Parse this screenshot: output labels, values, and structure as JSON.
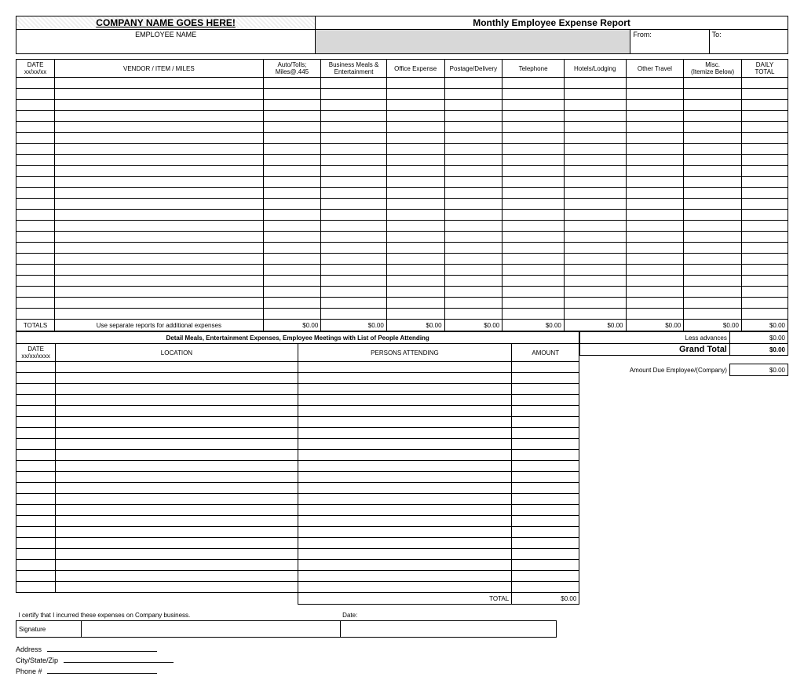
{
  "header": {
    "company_name": "COMPANY NAME GOES HERE!",
    "report_title": "Monthly Employee Expense Report",
    "employee_name_label": "EMPLOYEE NAME",
    "from_label": "From:",
    "to_label": "To:"
  },
  "maincols": {
    "date": "DATE",
    "date_fmt": "xx/xx/xx",
    "vendor": "VENDOR / ITEM / MILES",
    "auto": "Auto/Tolls;",
    "auto_sub": "Miles@.445",
    "meals": "Business Meals & Entertainment",
    "office": "Office Expense",
    "postage": "Postage/Delivery",
    "telephone": "Telephone",
    "hotels": "Hotels/Lodging",
    "travel": "Other Travel",
    "misc": "Misc.",
    "misc_sub": "(Itemize Below)",
    "daily": "DAILY",
    "daily_sub": "TOTAL"
  },
  "totals": {
    "label": "TOTALS",
    "note": "Use separate reports for additional expenses",
    "v0": "$0.00",
    "v1": "$0.00",
    "v2": "$0.00",
    "v3": "$0.00",
    "v4": "$0.00",
    "v5": "$0.00",
    "v6": "$0.00",
    "v7": "$0.00",
    "v8": "$0.00",
    "less_adv_label": "Less advances",
    "less_adv_val": "$0.00",
    "grand_total_label": "Grand Total",
    "grand_total_val": "$0.00",
    "amount_due_label": "Amount Due Employee/(Company)",
    "amount_due_val": "$0.00"
  },
  "detail": {
    "title": "Detail Meals, Entertainment Expenses, Employee Meetings with List of People Attending",
    "date": "DATE",
    "date_fmt": "xx/xx/xxxx",
    "location": "LOCATION",
    "persons": "PERSONS ATTENDING",
    "amount": "AMOUNT",
    "total_label": "TOTAL",
    "total_val": "$0.00"
  },
  "footer": {
    "certify": "I certify that I incurred these expenses on Company business.",
    "date_label": "Date:",
    "signature": "Signature",
    "address": "Address",
    "citystatezip": "City/State/Zip",
    "phone": "Phone #"
  },
  "style": {
    "main_rows": 22,
    "detail_rows": 21
  }
}
